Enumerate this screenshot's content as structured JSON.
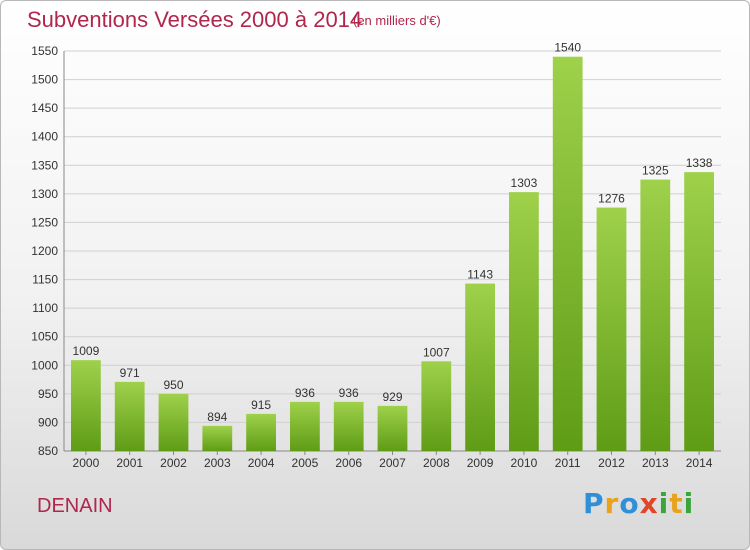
{
  "header": {
    "title": "Subventions Versées 2000 à 2014",
    "subtitle": "(en milliers d'€)"
  },
  "footer": {
    "city": "DENAIN",
    "logo": "Proxiti"
  },
  "colors": {
    "title": "#b0264d",
    "bar_top": "#9fd14b",
    "bar_bottom": "#5f9c16",
    "grid": "#d0d0d0"
  },
  "chart_data": {
    "type": "bar",
    "title": "Subventions Versées 2000 à 2014",
    "subtitle": "(en milliers d'€)",
    "xlabel": "",
    "ylabel": "",
    "categories": [
      "2000",
      "2001",
      "2002",
      "2003",
      "2004",
      "2005",
      "2006",
      "2007",
      "2008",
      "2009",
      "2010",
      "2011",
      "2012",
      "2013",
      "2014"
    ],
    "values": [
      1009,
      971,
      950,
      894,
      915,
      936,
      936,
      929,
      1007,
      1143,
      1303,
      1540,
      1276,
      1325,
      1338
    ],
    "ylim": [
      850,
      1550
    ],
    "yticks": [
      850,
      900,
      950,
      1000,
      1050,
      1100,
      1150,
      1200,
      1250,
      1300,
      1350,
      1400,
      1450,
      1500,
      1550
    ],
    "grid": true,
    "legend": "none"
  }
}
